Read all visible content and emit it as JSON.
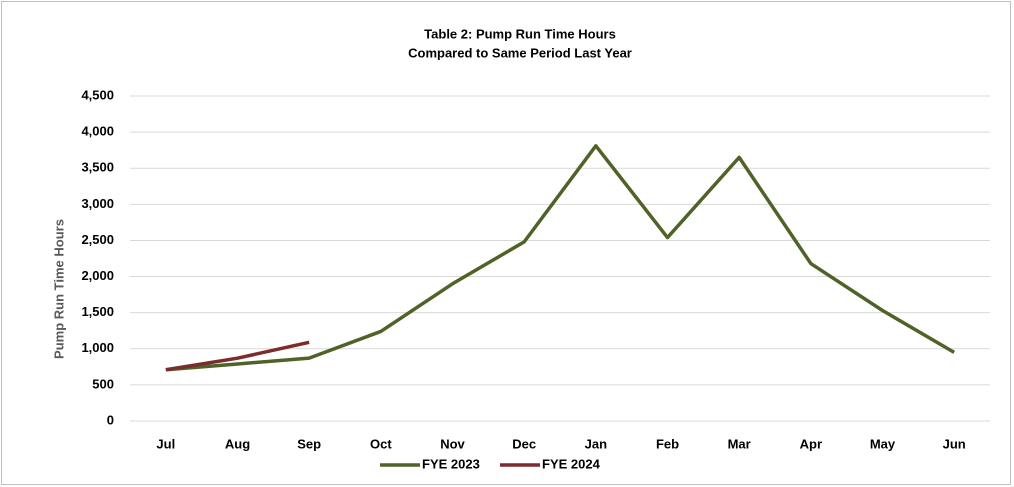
{
  "chart_data": {
    "type": "line",
    "title": "Table 2: Pump Run Time Hours",
    "subtitle": "Compared to Same Period Last Year",
    "y_label": "Pump Run Time Hours",
    "categories": [
      "Jul",
      "Aug",
      "Sep",
      "Oct",
      "Nov",
      "Dec",
      "Jan",
      "Feb",
      "Mar",
      "Apr",
      "May",
      "Jun"
    ],
    "series": [
      {
        "name": "FYE 2023",
        "color": "#4f6228",
        "values": [
          710,
          790,
          870,
          1240,
          1900,
          2480,
          3810,
          2540,
          3650,
          2180,
          1530,
          950
        ]
      },
      {
        "name": "FYE 2024",
        "color": "#7b2c2c",
        "values": [
          710,
          870,
          1090,
          null,
          null,
          null,
          null,
          null,
          null,
          null,
          null,
          null
        ]
      }
    ],
    "ylim": [
      0,
      4500
    ],
    "yticks": [
      0,
      500,
      {
        "value": 1000,
        "label": "1,000"
      },
      {
        "value": 1500,
        "label": "1,500"
      },
      {
        "value": 2000,
        "label": "2,000"
      },
      {
        "value": 2500,
        "label": "2,500"
      },
      {
        "value": 3000,
        "label": "3,000"
      },
      {
        "value": 3500,
        "label": "3,500"
      },
      {
        "value": 4000,
        "label": "4,000"
      },
      {
        "value": 4500,
        "label": "4,500"
      }
    ],
    "grid": true,
    "legend": "bottom"
  }
}
